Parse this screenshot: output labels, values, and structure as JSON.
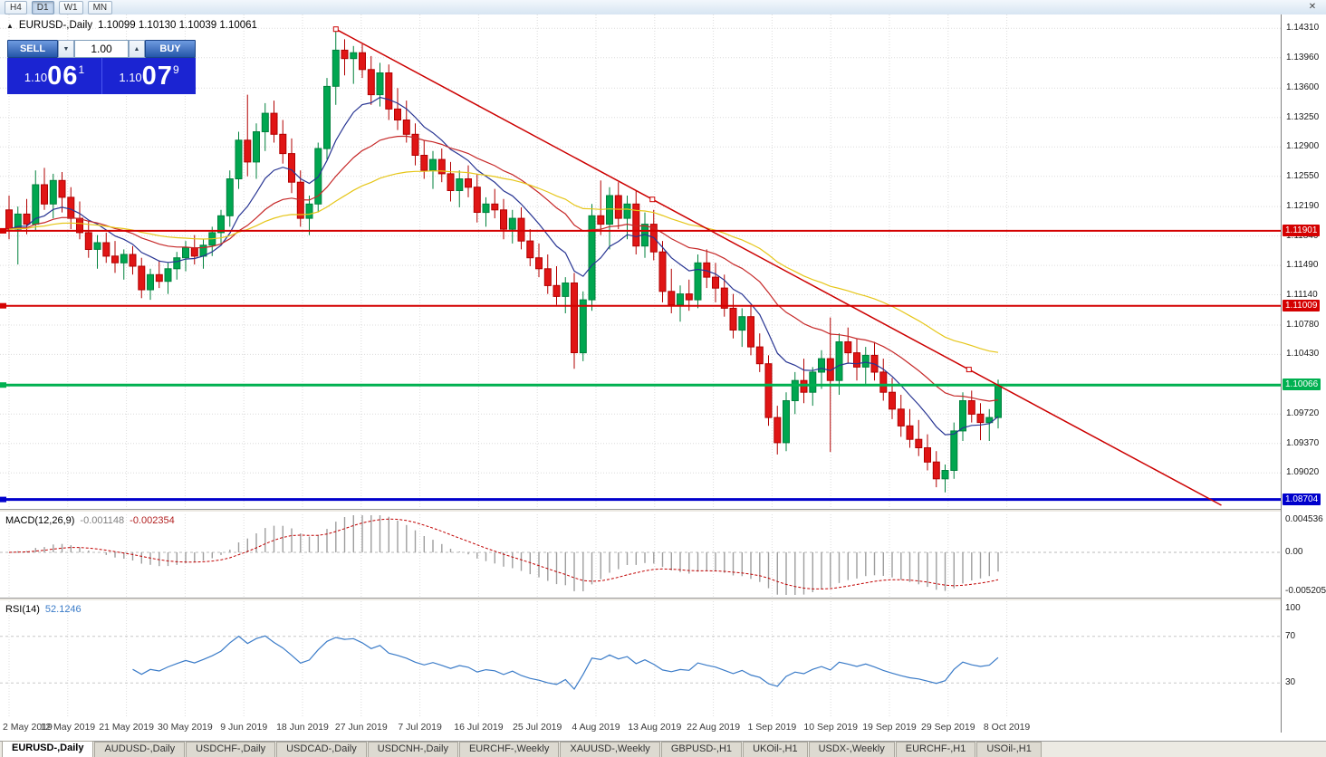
{
  "toolbar": {
    "timeframes": [
      {
        "label": "H4",
        "active": false
      },
      {
        "label": "D1",
        "active": true
      },
      {
        "label": "W1",
        "active": false
      },
      {
        "label": "MN",
        "active": false
      }
    ]
  },
  "icons": {
    "close": "✕",
    "chart_arrow": "▲",
    "spinner_down": "▼",
    "spinner_up": "▲"
  },
  "chart": {
    "symbol_period": "EURUSD-,Daily",
    "ohlc": "1.10099 1.10130 1.10039 1.10061"
  },
  "one_click": {
    "sell_label": "SELL",
    "buy_label": "BUY",
    "volume": "1.00",
    "bid_prefix": "1.10",
    "bid_big": "06",
    "bid_sup": "1",
    "ask_prefix": "1.10",
    "ask_big": "07",
    "ask_sup": "9"
  },
  "colors": {
    "candle_up": "#00A650",
    "candle_up_border": "#00813C",
    "candle_down": "#E01515",
    "candle_down_border": "#B20000",
    "ma_fast": "#283593",
    "ma_mid": "#C62828",
    "ma_slow": "#E6C619",
    "trendline": "#CC0000",
    "grid": "#DCDCDC",
    "macd_hist": "#9E9E9E",
    "macd_signal": "#C00000",
    "rsi_line": "#3A7BC8"
  },
  "hlines": [
    {
      "price": 1.11901,
      "label": "1.11901",
      "color": "#D40000",
      "width": 2
    },
    {
      "price": 1.11009,
      "label": "1.11009",
      "color": "#D40000",
      "width": 2
    },
    {
      "price": 1.10066,
      "label": "1.10066",
      "color": "#00B050",
      "width": 3
    },
    {
      "price": 1.08704,
      "label": "1.08704",
      "color": "#0000CC",
      "width": 3
    }
  ],
  "trendline": {
    "from_bar": 37,
    "from_price": 1.143,
    "to_bar": 108.7,
    "to_price": 1.1025
  },
  "price_axis_ticks": [
    1.1431,
    1.1396,
    1.136,
    1.1325,
    1.129,
    1.1255,
    1.1219,
    1.1184,
    1.1149,
    1.1114,
    1.1078,
    1.1043,
    1.0972,
    1.0937,
    1.0902
  ],
  "macd": {
    "label": "MACD(12,26,9)",
    "value_main": "-0.001148",
    "value_signal": "-0.002354",
    "params": [
      12,
      26,
      9
    ],
    "axis_max": 0.004536,
    "axis_min": -0.005205,
    "axis_labels": {
      "top": "0.004536",
      "zero": "0.00",
      "bottom": "-0.005205"
    }
  },
  "rsi": {
    "label": "RSI(14)",
    "value": "52.1246",
    "period": 14,
    "levels": [
      70,
      30
    ],
    "axis_labels": {
      "top": "100",
      "upper": "70",
      "lower": "30"
    }
  },
  "chart_data": {
    "type": "candlestick",
    "symbol": "EURUSD-",
    "timeframe": "Daily",
    "dates": [
      "2 May 2019",
      "12 May 2019",
      "21 May 2019",
      "30 May 2019",
      "9 Jun 2019",
      "18 Jun 2019",
      "27 Jun 2019",
      "7 Jul 2019",
      "16 Jul 2019",
      "25 Jul 2019",
      "4 Aug 2019",
      "13 Aug 2019",
      "22 Aug 2019",
      "1 Sep 2019",
      "10 Sep 2019",
      "19 Sep 2019",
      "29 Sep 2019",
      "8 Oct 2019"
    ],
    "candles": [
      [
        1.1215,
        1.1232,
        1.118,
        1.1192
      ],
      [
        1.1192,
        1.1219,
        1.115,
        1.121
      ],
      [
        1.121,
        1.1228,
        1.1186,
        1.1198
      ],
      [
        1.1198,
        1.1262,
        1.119,
        1.1245
      ],
      [
        1.1245,
        1.1265,
        1.1215,
        1.1222
      ],
      [
        1.1222,
        1.1258,
        1.1205,
        1.125
      ],
      [
        1.125,
        1.126,
        1.1212,
        1.123
      ],
      [
        1.123,
        1.1242,
        1.1192,
        1.1205
      ],
      [
        1.1205,
        1.1225,
        1.118,
        1.1188
      ],
      [
        1.1188,
        1.1202,
        1.1158,
        1.1168
      ],
      [
        1.1168,
        1.1185,
        1.1145,
        1.1176
      ],
      [
        1.1176,
        1.1188,
        1.1152,
        1.116
      ],
      [
        1.116,
        1.1178,
        1.114,
        1.1152
      ],
      [
        1.1152,
        1.1168,
        1.1132,
        1.1162
      ],
      [
        1.1162,
        1.1172,
        1.1138,
        1.1148
      ],
      [
        1.1148,
        1.1158,
        1.111,
        1.112
      ],
      [
        1.112,
        1.1145,
        1.1108,
        1.1138
      ],
      [
        1.1138,
        1.1155,
        1.1122,
        1.113
      ],
      [
        1.113,
        1.1152,
        1.1115,
        1.1145
      ],
      [
        1.1145,
        1.1165,
        1.1132,
        1.1158
      ],
      [
        1.1158,
        1.1178,
        1.1142,
        1.117
      ],
      [
        1.117,
        1.1185,
        1.115,
        1.116
      ],
      [
        1.116,
        1.118,
        1.1145,
        1.1173
      ],
      [
        1.1173,
        1.1195,
        1.116,
        1.1188
      ],
      [
        1.1188,
        1.1215,
        1.1175,
        1.1208
      ],
      [
        1.1208,
        1.1262,
        1.1195,
        1.1252
      ],
      [
        1.1252,
        1.1308,
        1.124,
        1.1298
      ],
      [
        1.1298,
        1.1352,
        1.1255,
        1.1272
      ],
      [
        1.1272,
        1.1318,
        1.1252,
        1.1308
      ],
      [
        1.1308,
        1.1342,
        1.1285,
        1.133
      ],
      [
        1.133,
        1.1345,
        1.1295,
        1.1305
      ],
      [
        1.1305,
        1.1322,
        1.127,
        1.1282
      ],
      [
        1.1282,
        1.13,
        1.1235,
        1.1248
      ],
      [
        1.1248,
        1.1262,
        1.1195,
        1.1205
      ],
      [
        1.1205,
        1.1232,
        1.1185,
        1.1222
      ],
      [
        1.1222,
        1.1295,
        1.1212,
        1.1288
      ],
      [
        1.1288,
        1.1372,
        1.1275,
        1.1362
      ],
      [
        1.1362,
        1.143,
        1.134,
        1.1405
      ],
      [
        1.1405,
        1.1418,
        1.1375,
        1.1395
      ],
      [
        1.1395,
        1.141,
        1.1365,
        1.1402
      ],
      [
        1.1402,
        1.1412,
        1.1372,
        1.1382
      ],
      [
        1.1382,
        1.1398,
        1.134,
        1.1352
      ],
      [
        1.1352,
        1.139,
        1.1338,
        1.1378
      ],
      [
        1.1378,
        1.1388,
        1.1322,
        1.1335
      ],
      [
        1.1335,
        1.136,
        1.131,
        1.1322
      ],
      [
        1.1322,
        1.1345,
        1.1295,
        1.1305
      ],
      [
        1.1305,
        1.1318,
        1.1268,
        1.128
      ],
      [
        1.128,
        1.1298,
        1.1252,
        1.1262
      ],
      [
        1.1262,
        1.1285,
        1.124,
        1.1275
      ],
      [
        1.1275,
        1.1288,
        1.1248,
        1.1258
      ],
      [
        1.1258,
        1.1272,
        1.1225,
        1.1238
      ],
      [
        1.1238,
        1.1262,
        1.1218,
        1.1252
      ],
      [
        1.1252,
        1.1268,
        1.123,
        1.1242
      ],
      [
        1.1242,
        1.1258,
        1.12,
        1.1212
      ],
      [
        1.1212,
        1.123,
        1.1195,
        1.1222
      ],
      [
        1.1222,
        1.124,
        1.1205,
        1.1215
      ],
      [
        1.1215,
        1.1228,
        1.118,
        1.1192
      ],
      [
        1.1192,
        1.1215,
        1.1175,
        1.1205
      ],
      [
        1.1205,
        1.1218,
        1.1168,
        1.1178
      ],
      [
        1.1178,
        1.1192,
        1.1148,
        1.1158
      ],
      [
        1.1158,
        1.1175,
        1.1135,
        1.1145
      ],
      [
        1.1145,
        1.1162,
        1.1115,
        1.1125
      ],
      [
        1.1125,
        1.1148,
        1.1102,
        1.1112
      ],
      [
        1.1112,
        1.1135,
        1.1092,
        1.1128
      ],
      [
        1.1128,
        1.114,
        1.1026,
        1.1045
      ],
      [
        1.1045,
        1.1118,
        1.1035,
        1.1108
      ],
      [
        1.1108,
        1.1222,
        1.1095,
        1.1208
      ],
      [
        1.1208,
        1.125,
        1.1185,
        1.1198
      ],
      [
        1.1198,
        1.1242,
        1.1168,
        1.1232
      ],
      [
        1.1232,
        1.1248,
        1.1192,
        1.1205
      ],
      [
        1.1205,
        1.1232,
        1.118,
        1.1222
      ],
      [
        1.1222,
        1.1238,
        1.1162,
        1.1172
      ],
      [
        1.1172,
        1.1212,
        1.1158,
        1.1198
      ],
      [
        1.1198,
        1.1215,
        1.1155,
        1.1165
      ],
      [
        1.1165,
        1.1178,
        1.1105,
        1.1118
      ],
      [
        1.1118,
        1.1145,
        1.1092,
        1.1102
      ],
      [
        1.1102,
        1.1125,
        1.1082,
        1.1115
      ],
      [
        1.1115,
        1.1132,
        1.1095,
        1.1108
      ],
      [
        1.1108,
        1.1162,
        1.1098,
        1.1152
      ],
      [
        1.1152,
        1.1168,
        1.1122,
        1.1135
      ],
      [
        1.1135,
        1.1152,
        1.1105,
        1.1122
      ],
      [
        1.1122,
        1.1138,
        1.1088,
        1.1098
      ],
      [
        1.1098,
        1.1115,
        1.1062,
        1.1072
      ],
      [
        1.1072,
        1.1098,
        1.1052,
        1.1088
      ],
      [
        1.1088,
        1.1102,
        1.1042,
        1.1052
      ],
      [
        1.1052,
        1.1068,
        1.1022,
        1.1032
      ],
      [
        1.1032,
        1.1042,
        1.0958,
        1.0968
      ],
      [
        1.0968,
        1.0982,
        1.0924,
        1.0938
      ],
      [
        1.0938,
        1.0998,
        1.0928,
        1.0988
      ],
      [
        1.0988,
        1.1022,
        1.0972,
        1.1012
      ],
      [
        1.1012,
        1.1038,
        1.0985,
        1.0998
      ],
      [
        1.0998,
        1.1028,
        1.0982,
        1.1022
      ],
      [
        1.1022,
        1.1048,
        1.1002,
        1.1038
      ],
      [
        1.1038,
        1.1087,
        1.0927,
        1.1012
      ],
      [
        1.1012,
        1.1068,
        1.0995,
        1.1058
      ],
      [
        1.1058,
        1.1075,
        1.1032,
        1.1045
      ],
      [
        1.1045,
        1.1062,
        1.1012,
        1.1028
      ],
      [
        1.1028,
        1.1052,
        1.1008,
        1.1042
      ],
      [
        1.1042,
        1.1058,
        1.1012,
        1.1022
      ],
      [
        1.1022,
        1.1038,
        1.0988,
        1.0998
      ],
      [
        1.0998,
        1.1015,
        1.0966,
        1.0978
      ],
      [
        1.0978,
        1.0995,
        1.0945,
        1.0958
      ],
      [
        1.0958,
        1.0978,
        1.0932,
        1.0942
      ],
      [
        1.0942,
        1.0965,
        1.0922,
        1.0932
      ],
      [
        1.0932,
        1.0948,
        1.0905,
        1.0915
      ],
      [
        1.0915,
        1.0928,
        1.0885,
        1.0895
      ],
      [
        1.0895,
        1.0912,
        1.0879,
        1.0905
      ],
      [
        1.0905,
        1.0962,
        1.0895,
        1.0952
      ],
      [
        1.0952,
        1.0998,
        1.094,
        1.0988
      ],
      [
        1.0988,
        1.1,
        1.0962,
        1.0972
      ],
      [
        1.0972,
        1.0985,
        1.0941,
        1.0962
      ],
      [
        1.0962,
        1.0978,
        1.094,
        1.0968
      ],
      [
        1.0968,
        1.1013,
        1.0955,
        1.1006
      ]
    ]
  },
  "tabs": [
    {
      "label": "EURUSD-,Daily",
      "active": true
    },
    {
      "label": "AUDUSD-,Daily",
      "active": false
    },
    {
      "label": "USDCHF-,Daily",
      "active": false
    },
    {
      "label": "USDCAD-,Daily",
      "active": false
    },
    {
      "label": "USDCNH-,Daily",
      "active": false
    },
    {
      "label": "EURCHF-,Weekly",
      "active": false
    },
    {
      "label": "XAUUSD-,Weekly",
      "active": false
    },
    {
      "label": "GBPUSD-,H1",
      "active": false
    },
    {
      "label": "UKOil-,H1",
      "active": false
    },
    {
      "label": "USDX-,Weekly",
      "active": false
    },
    {
      "label": "EURCHF-,H1",
      "active": false
    },
    {
      "label": "USOil-,H1",
      "active": false
    }
  ]
}
